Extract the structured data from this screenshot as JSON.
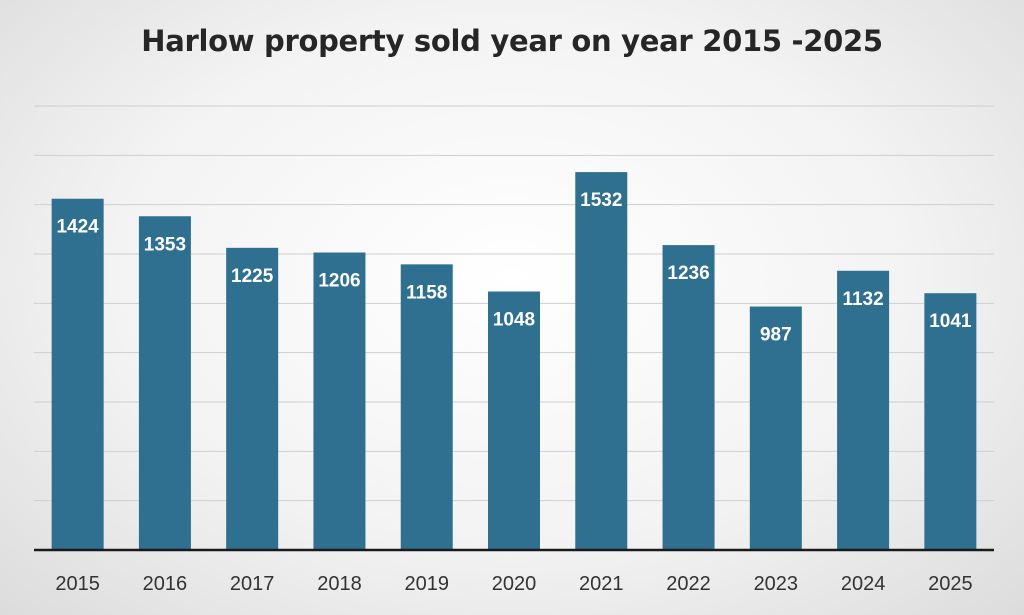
{
  "chart_data": {
    "type": "bar",
    "title": "Harlow property sold year on year 2015 -2025",
    "xlabel": "",
    "ylabel": "",
    "categories": [
      "2015",
      "2016",
      "2017",
      "2018",
      "2019",
      "2020",
      "2021",
      "2022",
      "2023",
      "2024",
      "2025"
    ],
    "values": [
      1424,
      1353,
      1225,
      1206,
      1158,
      1048,
      1532,
      1236,
      987,
      1132,
      1041
    ],
    "ylim": [
      0,
      1800
    ],
    "grid": true,
    "legend": "none",
    "colors": {
      "bar": "#2f6f8f",
      "grid": "#cfcfcf",
      "axis": "#1a1a1a",
      "label": "#ffffff"
    }
  }
}
